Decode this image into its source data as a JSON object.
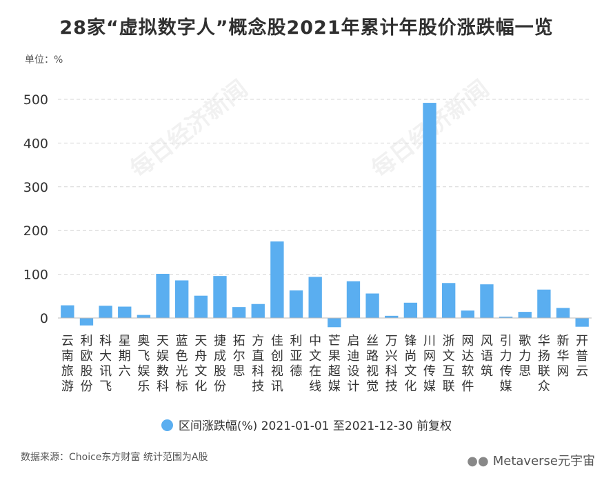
{
  "title": "28家“虚拟数字人”概念股2021年累计年股价涨跌幅一览",
  "unit_label": "单位：%",
  "legend_label": "区间涨跌幅(%) 2021-01-01 至2021-12-30 前复权",
  "source": "数据来源：Choice东方财富 统计范围为A股",
  "brand": "Metaverse元宇宙",
  "watermark": "每日经济新闻",
  "colors": {
    "bar": "#5aaef0",
    "grid": "#d6d6d6",
    "axis": "#bbbbbb",
    "text": "#333333"
  },
  "chart_data": {
    "type": "bar",
    "title": "28家“虚拟数字人”概念股2021年累计年股价涨跌幅一览",
    "ylabel": "单位：%",
    "xlabel": "",
    "ylim": [
      -25,
      520
    ],
    "yticks": [
      0,
      100,
      200,
      300,
      400,
      500
    ],
    "grid": true,
    "legend_position": "bottom",
    "categories": [
      "云南旅游",
      "利欧股份",
      "科大讯飞",
      "星期六",
      "奥飞娱乐",
      "天娱数科",
      "蓝色光标",
      "天舟文化",
      "捷成股份",
      "拓尔思",
      "方直科技",
      "佳创视讯",
      "利亚德",
      "中文在线",
      "芒果超媒",
      "启迪设计",
      "丝路视觉",
      "万兴科技",
      "锋尚文化",
      "川网传媒",
      "浙文互联",
      "网达软件",
      "风语筑",
      "引力传媒",
      "歌力思",
      "华扬联众",
      "新华网",
      "开普云"
    ],
    "series": [
      {
        "name": "区间涨跌幅(%) 2021-01-01 至2021-12-30 前复权",
        "values": [
          29,
          -17,
          28,
          26,
          7,
          101,
          86,
          51,
          96,
          25,
          32,
          175,
          63,
          94,
          -21,
          84,
          56,
          5,
          35,
          492,
          80,
          17,
          77,
          3,
          14,
          65,
          23,
          -20
        ]
      }
    ]
  }
}
